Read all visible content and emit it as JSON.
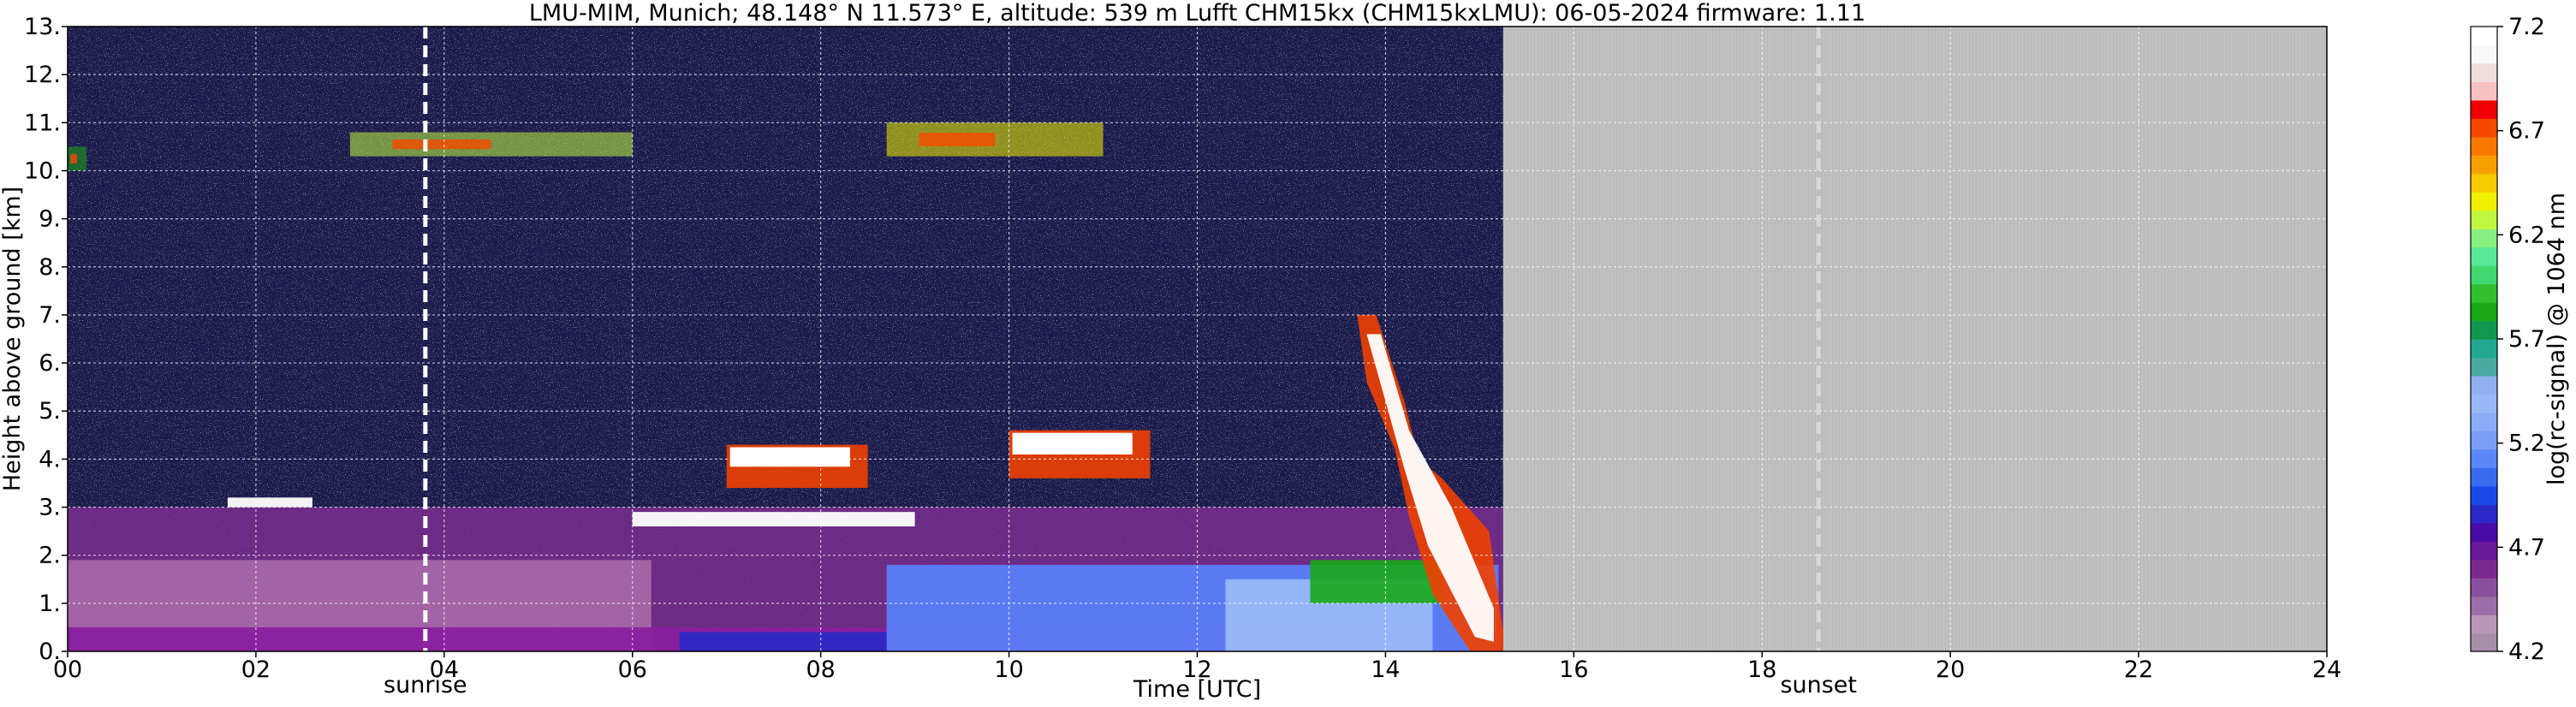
{
  "chart_data": {
    "type": "heatmap",
    "title": "LMU-MIM, Munich; 48.148° N 11.573° E, altitude: 539 m    Lufft CHM15kx (CHM15kxLMU): 06-05-2024    firmware: 1.11",
    "xlabel": "Time [UTC]",
    "ylabel": "Height above ground [km]",
    "xlim": [
      0,
      24
    ],
    "ylim": [
      0,
      13
    ],
    "x_ticks": [
      "00",
      "02",
      "04",
      "06",
      "08",
      "10",
      "12",
      "14",
      "16",
      "18",
      "20",
      "22",
      "24"
    ],
    "y_ticks": [
      "0.",
      "1.",
      "2.",
      "3.",
      "4.",
      "5.",
      "6.",
      "7.",
      "8.",
      "9.",
      "10.",
      "11.",
      "12.",
      "13."
    ],
    "grid": true,
    "data_end_time": 15.25,
    "no_data_color": "#c0c0c0",
    "background_color": "#1a1a4a",
    "markers": [
      {
        "label": "sunrise",
        "x": 3.8
      },
      {
        "label": "sunset",
        "x": 18.6
      }
    ],
    "colorbar": {
      "label": "log(rc-signal) @ 1064 nm",
      "min": 4.2,
      "max": 7.2,
      "ticks": [
        "4.2",
        "4.7",
        "5.2",
        "5.7",
        "6.2",
        "6.7",
        "7.2"
      ],
      "colors": [
        "#a88fa8",
        "#b898b8",
        "#9a6ea8",
        "#8a4f9e",
        "#7a2a8e",
        "#6a1a9a",
        "#4a0aa8",
        "#2a28c8",
        "#1a48e8",
        "#3a6af0",
        "#5a88f8",
        "#7a9ef8",
        "#8aacf8",
        "#98b8f8",
        "#90b0f0",
        "#4aa8a0",
        "#20a890",
        "#109850",
        "#18a818",
        "#30c030",
        "#40d870",
        "#58e898",
        "#88f080",
        "#c0f840",
        "#f0f000",
        "#f8c800",
        "#f8a000",
        "#f87800",
        "#f84800",
        "#f00000",
        "#f8c0c0",
        "#f0dede",
        "#f8f8f8",
        "#ffffff"
      ]
    },
    "features": [
      {
        "name": "aerosol boundary layer",
        "x": [
          0,
          15.25
        ],
        "height_km": [
          0,
          3.0
        ],
        "level": 4.6
      },
      {
        "name": "convective boundary layer",
        "x": [
          8.7,
          15.2
        ],
        "height_km": [
          0,
          1.8
        ],
        "level": 5.1
      },
      {
        "name": "low cloud 0230",
        "x": [
          1.7,
          2.6
        ],
        "height_km": [
          3.0,
          3.2
        ],
        "level": 7.2
      },
      {
        "name": "mid cloud 0700",
        "x": [
          7.0,
          8.5
        ],
        "height_km": [
          3.4,
          4.3
        ],
        "level": 6.9
      },
      {
        "name": "cloud 1030",
        "x": [
          10.0,
          11.5
        ],
        "height_km": [
          3.6,
          4.6
        ],
        "level": 6.6
      },
      {
        "name": "cirrus 10 km",
        "x": [
          0,
          0.2
        ],
        "height_km": [
          10.0,
          10.5
        ],
        "level": 5.8
      },
      {
        "name": "cirrus 10.5 km",
        "x": [
          3.0,
          6.0
        ],
        "height_km": [
          10.3,
          10.8
        ],
        "level": 6.3
      },
      {
        "name": "cirrus 11 km",
        "x": [
          8.7,
          11.0
        ],
        "height_km": [
          10.3,
          11.0
        ],
        "level": 6.4
      },
      {
        "name": "rain fall streak",
        "x": [
          13.7,
          15.25
        ],
        "height_km": [
          0,
          7.0
        ],
        "level": 7.0
      },
      {
        "name": "cloud base 2.7 km",
        "x": [
          6.0,
          9.0
        ],
        "height_km": [
          2.6,
          2.9
        ],
        "level": 7.2
      }
    ]
  }
}
